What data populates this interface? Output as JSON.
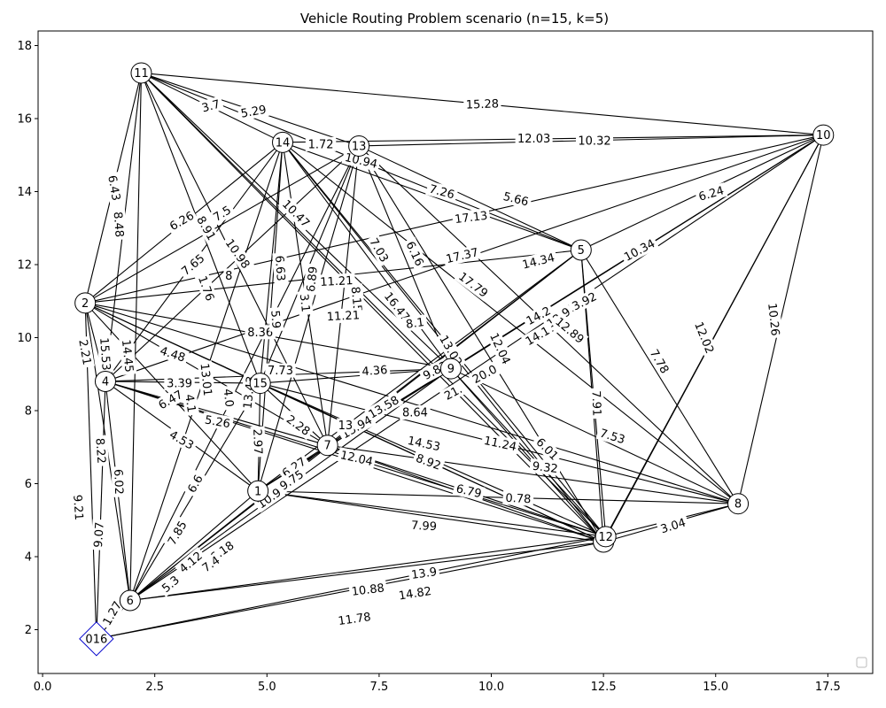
{
  "title": "Vehicle Routing Problem scenario (n=15, k=5)",
  "axes": {
    "xlim": [
      -0.1,
      18.5
    ],
    "ylim": [
      0.8,
      18.4
    ],
    "xticks": [
      0.0,
      2.5,
      5.0,
      7.5,
      10.0,
      12.5,
      15.0,
      17.5
    ],
    "xtick_labels": [
      "0.0",
      "2.5",
      "5.0",
      "7.5",
      "10.0",
      "12.5",
      "15.0",
      "17.5"
    ],
    "yticks": [
      2,
      4,
      6,
      8,
      10,
      12,
      14,
      16,
      18
    ],
    "ytick_labels": [
      "2",
      "4",
      "6",
      "8",
      "10",
      "12",
      "14",
      "16",
      "18"
    ]
  },
  "depot": {
    "id": "016",
    "x": 1.2,
    "y": 1.75,
    "color": "#0000cc"
  },
  "nodes": [
    {
      "id": "1",
      "x": 4.8,
      "y": 5.8
    },
    {
      "id": "2",
      "x": 0.95,
      "y": 10.95
    },
    {
      "id": "3",
      "x": 12.5,
      "y": 4.4
    },
    {
      "id": "4",
      "x": 1.4,
      "y": 8.8
    },
    {
      "id": "5",
      "x": 12.0,
      "y": 12.4
    },
    {
      "id": "6",
      "x": 1.95,
      "y": 2.8
    },
    {
      "id": "7",
      "x": 6.35,
      "y": 7.05
    },
    {
      "id": "8",
      "x": 15.5,
      "y": 5.45
    },
    {
      "id": "9",
      "x": 9.1,
      "y": 9.15
    },
    {
      "id": "10",
      "x": 17.4,
      "y": 15.55
    },
    {
      "id": "11",
      "x": 2.2,
      "y": 17.25
    },
    {
      "id": "12",
      "x": 12.55,
      "y": 4.55
    },
    {
      "id": "13",
      "x": 7.05,
      "y": 15.25
    },
    {
      "id": "14",
      "x": 5.35,
      "y": 15.35
    },
    {
      "id": "15",
      "x": 4.85,
      "y": 8.75
    }
  ],
  "edges": [
    [
      "11",
      "10"
    ],
    [
      "11",
      "14"
    ],
    [
      "11",
      "13"
    ],
    [
      "11",
      "2"
    ],
    [
      "11",
      "4"
    ],
    [
      "11",
      "6"
    ],
    [
      "11",
      "15"
    ],
    [
      "11",
      "7"
    ],
    [
      "11",
      "9"
    ],
    [
      "11",
      "12"
    ],
    [
      "11",
      "3"
    ],
    [
      "11",
      "5"
    ],
    [
      "14",
      "10"
    ],
    [
      "13",
      "10"
    ],
    [
      "14",
      "2"
    ],
    [
      "14",
      "4"
    ],
    [
      "14",
      "6"
    ],
    [
      "14",
      "1"
    ],
    [
      "14",
      "15"
    ],
    [
      "14",
      "7"
    ],
    [
      "14",
      "9"
    ],
    [
      "14",
      "3"
    ],
    [
      "14",
      "12"
    ],
    [
      "14",
      "8"
    ],
    [
      "14",
      "5"
    ],
    [
      "13",
      "2"
    ],
    [
      "13",
      "4"
    ],
    [
      "13",
      "6"
    ],
    [
      "13",
      "1"
    ],
    [
      "13",
      "15"
    ],
    [
      "13",
      "7"
    ],
    [
      "13",
      "9"
    ],
    [
      "13",
      "5"
    ],
    [
      "13",
      "3"
    ],
    [
      "13",
      "8"
    ],
    [
      "10",
      "2"
    ],
    [
      "10",
      "4"
    ],
    [
      "10",
      "6"
    ],
    [
      "10",
      "1"
    ],
    [
      "10",
      "9"
    ],
    [
      "10",
      "8"
    ],
    [
      "10",
      "12"
    ],
    [
      "10",
      "3"
    ],
    [
      "10",
      "5"
    ],
    [
      "5",
      "2"
    ],
    [
      "5",
      "6"
    ],
    [
      "5",
      "1"
    ],
    [
      "5",
      "7"
    ],
    [
      "5",
      "12"
    ],
    [
      "5",
      "3"
    ],
    [
      "5",
      "8"
    ],
    [
      "2",
      "016"
    ],
    [
      "2",
      "4"
    ],
    [
      "2",
      "6"
    ],
    [
      "2",
      "15"
    ],
    [
      "2",
      "7"
    ],
    [
      "2",
      "9"
    ],
    [
      "2",
      "8"
    ],
    [
      "2",
      "1"
    ],
    [
      "2",
      "3"
    ],
    [
      "4",
      "016"
    ],
    [
      "4",
      "6"
    ],
    [
      "4",
      "15"
    ],
    [
      "4",
      "1"
    ],
    [
      "4",
      "9"
    ],
    [
      "4",
      "12"
    ],
    [
      "4",
      "3"
    ],
    [
      "4",
      "7"
    ],
    [
      "6",
      "016"
    ],
    [
      "6",
      "1"
    ],
    [
      "6",
      "15"
    ],
    [
      "6",
      "7"
    ],
    [
      "6",
      "9"
    ],
    [
      "6",
      "12"
    ],
    [
      "6",
      "3"
    ],
    [
      "016",
      "3"
    ],
    [
      "016",
      "12"
    ],
    [
      "15",
      "1"
    ],
    [
      "15",
      "7"
    ],
    [
      "15",
      "9"
    ],
    [
      "15",
      "12"
    ],
    [
      "15",
      "3"
    ],
    [
      "15",
      "8"
    ],
    [
      "1",
      "7"
    ],
    [
      "1",
      "9"
    ],
    [
      "1",
      "12"
    ],
    [
      "1",
      "3"
    ],
    [
      "1",
      "8"
    ],
    [
      "7",
      "9"
    ],
    [
      "7",
      "12"
    ],
    [
      "7",
      "3"
    ],
    [
      "7",
      "8"
    ],
    [
      "9",
      "12"
    ],
    [
      "9",
      "3"
    ],
    [
      "9",
      "8"
    ],
    [
      "12",
      "8"
    ],
    [
      "3",
      "8"
    ]
  ],
  "edge_labels": [
    {
      "text": "15.28",
      "x": 9.8,
      "y": 16.4,
      "angle": 2
    },
    {
      "text": "12.03",
      "x": 10.95,
      "y": 15.45,
      "angle": 0
    },
    {
      "text": "10.32",
      "x": 12.3,
      "y": 15.4,
      "angle": 0
    },
    {
      "text": "3.7",
      "x": 3.75,
      "y": 16.35,
      "angle": 15
    },
    {
      "text": "5.29",
      "x": 4.7,
      "y": 16.2,
      "angle": 10
    },
    {
      "text": "1.72",
      "x": 6.2,
      "y": 15.3,
      "angle": 0
    },
    {
      "text": "10.94",
      "x": 7.1,
      "y": 14.85,
      "angle": -13
    },
    {
      "text": "7.26",
      "x": 8.9,
      "y": 14.0,
      "angle": -15
    },
    {
      "text": "5.66",
      "x": 10.55,
      "y": 13.8,
      "angle": -14
    },
    {
      "text": "6.24",
      "x": 14.9,
      "y": 13.95,
      "angle": 16
    },
    {
      "text": "17.13",
      "x": 9.55,
      "y": 13.3,
      "angle": 7
    },
    {
      "text": "6.43",
      "x": 1.6,
      "y": 14.1,
      "angle": -80
    },
    {
      "text": "8.48",
      "x": 1.7,
      "y": 13.1,
      "angle": -86
    },
    {
      "text": "6.26",
      "x": 3.1,
      "y": 13.2,
      "angle": 30
    },
    {
      "text": "8.91",
      "x": 3.65,
      "y": 13.0,
      "angle": -60
    },
    {
      "text": "7.5",
      "x": 4.0,
      "y": 13.4,
      "angle": 32
    },
    {
      "text": "10.98",
      "x": 4.35,
      "y": 12.3,
      "angle": -55
    },
    {
      "text": "10.47",
      "x": 5.65,
      "y": 13.4,
      "angle": -45
    },
    {
      "text": "7.03",
      "x": 7.5,
      "y": 12.4,
      "angle": -60
    },
    {
      "text": "6.16",
      "x": 8.3,
      "y": 12.3,
      "angle": -65
    },
    {
      "text": "17.37",
      "x": 9.35,
      "y": 12.25,
      "angle": 13
    },
    {
      "text": "14.34",
      "x": 11.05,
      "y": 12.1,
      "angle": 14
    },
    {
      "text": "10.34",
      "x": 13.3,
      "y": 12.4,
      "angle": 28
    },
    {
      "text": "7.65",
      "x": 3.35,
      "y": 12.0,
      "angle": 40
    },
    {
      "text": "1.76",
      "x": 3.65,
      "y": 11.35,
      "angle": -70
    },
    {
      "text": "8",
      "x": 4.15,
      "y": 11.7,
      "angle": 0
    },
    {
      "text": "6.63",
      "x": 5.3,
      "y": 11.9,
      "angle": -86
    },
    {
      "text": "6.89",
      "x": 6.0,
      "y": 11.6,
      "angle": 84
    },
    {
      "text": "11.21",
      "x": 6.55,
      "y": 11.55,
      "angle": 3
    },
    {
      "text": "17.79",
      "x": 9.6,
      "y": 11.45,
      "angle": -37
    },
    {
      "text": "3.1",
      "x": 5.85,
      "y": 10.95,
      "angle": -84
    },
    {
      "text": "8.15",
      "x": 7.0,
      "y": 11.05,
      "angle": -84
    },
    {
      "text": "16.47",
      "x": 7.9,
      "y": 10.85,
      "angle": -52
    },
    {
      "text": "11.21",
      "x": 6.7,
      "y": 10.6,
      "angle": 3
    },
    {
      "text": "13.92",
      "x": 12.0,
      "y": 10.95,
      "angle": 27
    },
    {
      "text": "14.2",
      "x": 11.05,
      "y": 10.6,
      "angle": 28
    },
    {
      "text": "14.17",
      "x": 11.1,
      "y": 10.1,
      "angle": 30
    },
    {
      "text": "12.9",
      "x": 11.5,
      "y": 10.55,
      "angle": 35
    },
    {
      "text": "12.89",
      "x": 11.75,
      "y": 10.2,
      "angle": -40
    },
    {
      "text": "8.1",
      "x": 8.3,
      "y": 10.4,
      "angle": 8
    },
    {
      "text": "13.02",
      "x": 9.1,
      "y": 9.65,
      "angle": -60
    },
    {
      "text": "12.04",
      "x": 10.2,
      "y": 9.7,
      "angle": -65
    },
    {
      "text": "15.53",
      "x": 1.4,
      "y": 9.55,
      "angle": -86
    },
    {
      "text": "14.45",
      "x": 1.9,
      "y": 9.5,
      "angle": -84
    },
    {
      "text": "2.21",
      "x": 0.95,
      "y": 9.6,
      "angle": -80
    },
    {
      "text": "4.48",
      "x": 2.9,
      "y": 9.55,
      "angle": -18
    },
    {
      "text": "8.36",
      "x": 4.85,
      "y": 10.15,
      "angle": 0
    },
    {
      "text": "5.9",
      "x": 5.2,
      "y": 10.5,
      "angle": -86
    },
    {
      "text": "7.73",
      "x": 5.3,
      "y": 9.1,
      "angle": 0
    },
    {
      "text": "4.36",
      "x": 7.4,
      "y": 9.1,
      "angle": 4
    },
    {
      "text": "9.83",
      "x": 8.75,
      "y": 9.1,
      "angle": 28
    },
    {
      "text": "20.0",
      "x": 9.85,
      "y": 9.0,
      "angle": 28
    },
    {
      "text": "21.",
      "x": 9.15,
      "y": 8.5,
      "angle": 28
    },
    {
      "text": "3.39",
      "x": 3.05,
      "y": 8.75,
      "angle": 0
    },
    {
      "text": "13.01",
      "x": 3.65,
      "y": 8.85,
      "angle": -84
    },
    {
      "text": "13.43",
      "x": 4.6,
      "y": 8.5,
      "angle": 84
    },
    {
      "text": "4.0",
      "x": 4.15,
      "y": 8.35,
      "angle": -84
    },
    {
      "text": "6.47",
      "x": 2.85,
      "y": 8.3,
      "angle": 30
    },
    {
      "text": "4.1",
      "x": 3.3,
      "y": 8.2,
      "angle": -82
    },
    {
      "text": "5.26",
      "x": 3.9,
      "y": 7.7,
      "angle": -10
    },
    {
      "text": "2.28",
      "x": 5.7,
      "y": 7.6,
      "angle": -36
    },
    {
      "text": "13.58",
      "x": 7.6,
      "y": 8.1,
      "angle": 30
    },
    {
      "text": "13.94",
      "x": 7.0,
      "y": 7.55,
      "angle": 30
    },
    {
      "text": "8.64",
      "x": 8.3,
      "y": 7.95,
      "angle": 0
    },
    {
      "text": "13",
      "x": 6.75,
      "y": 7.6,
      "angle": 0
    },
    {
      "text": "7.91",
      "x": 12.35,
      "y": 8.2,
      "angle": -88
    },
    {
      "text": "7.78",
      "x": 13.75,
      "y": 9.35,
      "angle": -60
    },
    {
      "text": "10.26",
      "x": 16.3,
      "y": 10.5,
      "angle": -84
    },
    {
      "text": "12.02",
      "x": 14.75,
      "y": 10.0,
      "angle": -68
    },
    {
      "text": "7.53",
      "x": 12.7,
      "y": 7.3,
      "angle": -17
    },
    {
      "text": "4.53",
      "x": 3.1,
      "y": 7.2,
      "angle": -30
    },
    {
      "text": "2.97",
      "x": 4.8,
      "y": 7.15,
      "angle": -88
    },
    {
      "text": "14.53",
      "x": 8.5,
      "y": 7.1,
      "angle": -12
    },
    {
      "text": "11.24",
      "x": 10.2,
      "y": 7.1,
      "angle": -12
    },
    {
      "text": "6.01",
      "x": 11.25,
      "y": 6.95,
      "angle": -45
    },
    {
      "text": "8.92",
      "x": 8.6,
      "y": 6.6,
      "angle": -20
    },
    {
      "text": "9.32",
      "x": 11.2,
      "y": 6.45,
      "angle": -7
    },
    {
      "text": "12.04",
      "x": 7.0,
      "y": 6.7,
      "angle": -13
    },
    {
      "text": "6.27",
      "x": 5.6,
      "y": 6.45,
      "angle": 34
    },
    {
      "text": "9.75",
      "x": 5.55,
      "y": 6.1,
      "angle": 34
    },
    {
      "text": "10.9",
      "x": 5.05,
      "y": 5.6,
      "angle": 35
    },
    {
      "text": "6.79",
      "x": 9.5,
      "y": 5.8,
      "angle": -13
    },
    {
      "text": "0.78",
      "x": 10.6,
      "y": 5.6,
      "angle": -3
    },
    {
      "text": "8.22",
      "x": 1.3,
      "y": 6.9,
      "angle": -86
    },
    {
      "text": "6.02",
      "x": 1.7,
      "y": 6.05,
      "angle": -88
    },
    {
      "text": "9.21",
      "x": 0.8,
      "y": 5.35,
      "angle": -86
    },
    {
      "text": "9.07",
      "x": 1.25,
      "y": 4.6,
      "angle": 86
    },
    {
      "text": "6.6",
      "x": 3.4,
      "y": 6.0,
      "angle": 60
    },
    {
      "text": "7.85",
      "x": 3.0,
      "y": 4.65,
      "angle": 60
    },
    {
      "text": "6.18",
      "x": 4.0,
      "y": 4.15,
      "angle": 35
    },
    {
      "text": "7.99",
      "x": 8.5,
      "y": 4.85,
      "angle": -3
    },
    {
      "text": "3.04",
      "x": 14.05,
      "y": 4.85,
      "angle": 17
    },
    {
      "text": "4.12",
      "x": 3.3,
      "y": 3.85,
      "angle": 40
    },
    {
      "text": "7.4",
      "x": 3.75,
      "y": 3.8,
      "angle": 35
    },
    {
      "text": "5.3",
      "x": 2.85,
      "y": 3.25,
      "angle": 40
    },
    {
      "text": "13.9",
      "x": 8.5,
      "y": 3.55,
      "angle": 8
    },
    {
      "text": "10.88",
      "x": 7.25,
      "y": 3.1,
      "angle": 7
    },
    {
      "text": "14.82",
      "x": 8.3,
      "y": 3.0,
      "angle": 9
    },
    {
      "text": "11.78",
      "x": 6.95,
      "y": 2.3,
      "angle": 8
    },
    {
      "text": "1.27",
      "x": 1.55,
      "y": 2.45,
      "angle": 60
    }
  ]
}
